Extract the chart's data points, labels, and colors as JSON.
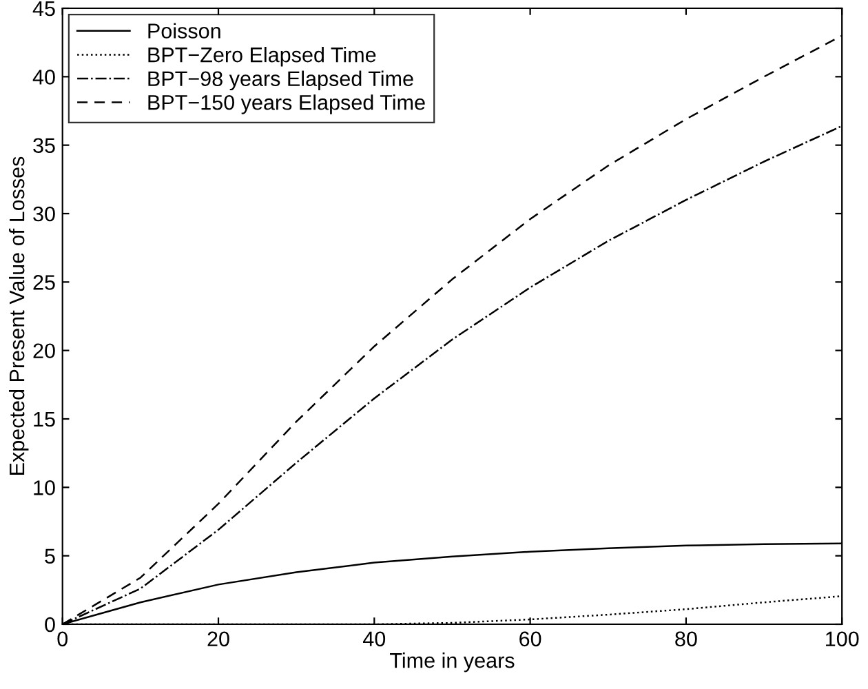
{
  "chart_data": {
    "type": "line",
    "xlabel": "Time in years",
    "ylabel": "Expected Present Value of Losses",
    "x": [
      0,
      10,
      20,
      30,
      40,
      50,
      60,
      70,
      80,
      90,
      100
    ],
    "series": [
      {
        "name": "Poisson",
        "color": "#000000",
        "line_style": "solid",
        "values": [
          0,
          1.6,
          2.9,
          3.8,
          4.5,
          4.95,
          5.3,
          5.55,
          5.75,
          5.85,
          5.9
        ]
      },
      {
        "name": "BPT−Zero Elapsed Time",
        "color": "#000000",
        "line_style": "dotted",
        "values": [
          0,
          0,
          0,
          0,
          0,
          0.1,
          0.35,
          0.7,
          1.1,
          1.6,
          2.05
        ]
      },
      {
        "name": "BPT−98 years Elapsed Time",
        "color": "#000000",
        "line_style": "dashdot",
        "values": [
          0,
          2.6,
          6.9,
          11.8,
          16.5,
          20.8,
          24.6,
          28,
          31,
          33.8,
          36.4
        ]
      },
      {
        "name": "BPT−150 years Elapsed Time",
        "color": "#000000",
        "line_style": "dashed",
        "values": [
          0,
          3.4,
          8.8,
          14.8,
          20.3,
          25.2,
          29.6,
          33.5,
          36.9,
          40,
          43
        ]
      }
    ],
    "xlim": [
      0,
      100
    ],
    "xticks": [
      0,
      20,
      40,
      60,
      80,
      100
    ],
    "ylim": [
      0,
      45
    ],
    "yticks": [
      0,
      5,
      10,
      15,
      20,
      25,
      30,
      35,
      40,
      45
    ],
    "grid": false,
    "legend": "top left",
    "marker": "none"
  }
}
